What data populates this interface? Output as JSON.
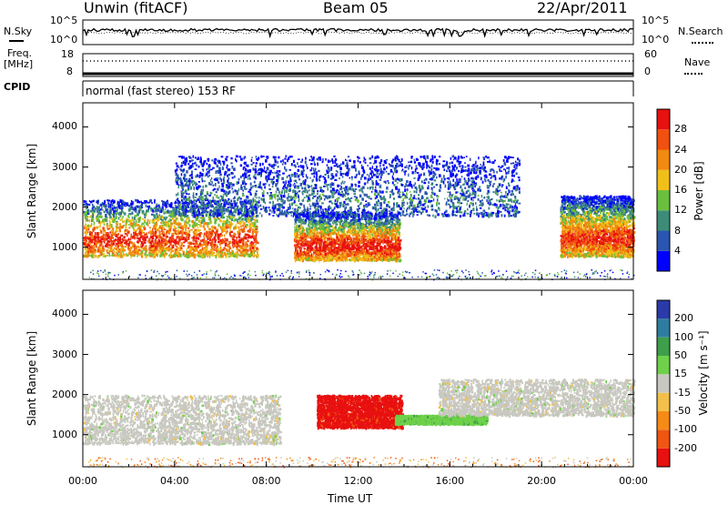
{
  "header": {
    "station": "Unwin (fitACF)",
    "beam": "Beam 05",
    "date": "22/Apr/2011"
  },
  "panels": {
    "nsky_label": "N.Sky",
    "nsearch_label": "N.Search",
    "noise_ticks_left": [
      "10^5",
      "10^0"
    ],
    "noise_ticks_right": [
      "10^5",
      "10^0"
    ],
    "freq_label_1": "Freq.",
    "freq_label_2": "[MHz]",
    "freq_ticks": [
      "18",
      "8"
    ],
    "nave_label": "Nave",
    "nave_ticks": [
      "60",
      "0"
    ],
    "cpid_label": "CPID",
    "cpid_text": "normal (fast stereo) 153 RF"
  },
  "colors": {
    "power_scale": [
      "#0000ff",
      "#2a55b0",
      "#3c8c78",
      "#6abf3c",
      "#f0c018",
      "#f08a10",
      "#f05010",
      "#e81010"
    ],
    "velocity_scale": [
      "#2b3aa8",
      "#2e7da0",
      "#3e9e4a",
      "#6fd14a",
      "#c8c8c0",
      "#f2c04a",
      "#f58a16",
      "#f05512",
      "#e81010"
    ]
  },
  "chart_data": [
    {
      "type": "heatmap",
      "title": "Power",
      "xlabel": "Time UT",
      "ylabel": "Slant Range [km]",
      "x_ticks": [
        "00:00",
        "04:00",
        "08:00",
        "12:00",
        "16:00",
        "20:00",
        "00:00"
      ],
      "y_ticks": [
        1000,
        2000,
        3000,
        4000
      ],
      "ylim": [
        200,
        4600
      ],
      "colorbar": {
        "label": "Power [dB]",
        "ticks": [
          4,
          8,
          12,
          16,
          20,
          24,
          28
        ],
        "range": [
          0,
          32
        ]
      },
      "features": [
        {
          "name": "morning band",
          "time_h": [
            0,
            7.6
          ],
          "range_km": [
            800,
            2200
          ],
          "peak_power_db": 28
        },
        {
          "name": "midday band",
          "time_h": [
            9.2,
            13.8
          ],
          "range_km": [
            700,
            1900
          ],
          "peak_power_db": 30
        },
        {
          "name": "evening band",
          "time_h": [
            20.8,
            24
          ],
          "range_km": [
            800,
            2300
          ],
          "peak_power_db": 28
        },
        {
          "name": "scattered echoes",
          "time_h": [
            4,
            19
          ],
          "range_km": [
            1800,
            3300
          ],
          "peak_power_db": 8
        }
      ]
    },
    {
      "type": "heatmap",
      "title": "Velocity",
      "xlabel": "Time UT",
      "ylabel": "Slant Range [km]",
      "x_ticks": [
        "00:00",
        "04:00",
        "08:00",
        "12:00",
        "16:00",
        "20:00",
        "00:00"
      ],
      "y_ticks": [
        1000,
        2000,
        3000,
        4000
      ],
      "ylim": [
        200,
        4600
      ],
      "colorbar": {
        "label": "Velocity [m s⁻¹]",
        "ticks": [
          "200",
          "100",
          "50",
          "15",
          "-15",
          "-50",
          "-100",
          "-200"
        ],
        "range": [
          -250,
          250
        ]
      },
      "features": [
        {
          "name": "ground scatter",
          "time_h": [
            0,
            8.6
          ],
          "range_km": [
            800,
            2000
          ],
          "velocity_ms": 0
        },
        {
          "name": "negative velocity region",
          "time_h": [
            10.2,
            13.9
          ],
          "range_km": [
            1200,
            2000
          ],
          "velocity_ms": -220
        },
        {
          "name": "positive velocity streak",
          "time_h": [
            13.6,
            17.6
          ],
          "range_km": [
            1300,
            1500
          ],
          "velocity_ms": 60
        },
        {
          "name": "late ground scatter",
          "time_h": [
            15.5,
            24
          ],
          "range_km": [
            1500,
            2400
          ],
          "velocity_ms": 0
        }
      ]
    }
  ]
}
